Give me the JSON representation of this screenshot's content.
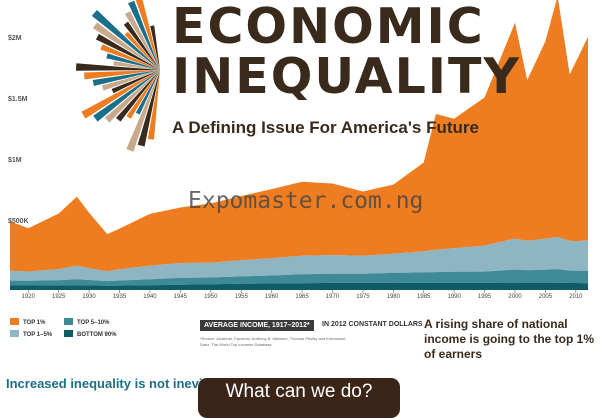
{
  "title_line1": "ECONOMIC",
  "title_line2": "INEQUALITY",
  "subtitle": "A Defining Issue For America's Future",
  "watermark": "Expomaster.com.ng",
  "y_tick_labels": [
    "$2M",
    "$1.5M",
    "$1M",
    "$500K"
  ],
  "x_tick_labels": [
    "1920",
    "1925",
    "1930",
    "1935",
    "1940",
    "1945",
    "1950",
    "1955",
    "1960",
    "1965",
    "1970",
    "1975",
    "1980",
    "1985",
    "1990",
    "1995",
    "2000",
    "2005",
    "2010"
  ],
  "legend": {
    "top1": "TOP 1%",
    "top1_5": "TOP 1–5%",
    "top5_10": "TOP 5–10%",
    "bottom90": "BOTTOM 90%"
  },
  "avg_income_label": "AVERAGE INCOME, 1917–2012*",
  "avg_income_units": "IN 2012 CONSTANT DOLLARS",
  "source_note": "*Source: Alvaredo, Facundo, Anthony B. Atkinson, Thomas Piketty and Emmanuel Saez, The World Top Incomes Database",
  "rising_text": "A rising share of national income is going to the top 1% of earners",
  "increased_text": "Increased inequality is not inevitable",
  "what_can_we_do": "What can we do?",
  "colors": {
    "top1": "#ee7d22",
    "top1_5": "#8fb4c2",
    "top5_10": "#3e8a96",
    "bottom90": "#0f5c66",
    "title": "#3a2a1c"
  },
  "chart_data": {
    "type": "area",
    "stacked": true,
    "x": [
      1917,
      1920,
      1925,
      1928,
      1930,
      1933,
      1935,
      1940,
      1945,
      1950,
      1955,
      1960,
      1965,
      1970,
      1975,
      1980,
      1985,
      1987,
      1990,
      1995,
      2000,
      2002,
      2005,
      2007,
      2009,
      2010,
      2012
    ],
    "series": [
      {
        "name": "BOTTOM 90%",
        "values": [
          12000,
          12000,
          13000,
          14000,
          13000,
          10000,
          11000,
          14000,
          19000,
          22000,
          26000,
          28000,
          31000,
          33000,
          33000,
          34000,
          33000,
          33000,
          33000,
          33000,
          36000,
          35000,
          35000,
          35000,
          33000,
          32000,
          31000
        ]
      },
      {
        "name": "TOP 5–10%",
        "values": [
          40000,
          38000,
          42000,
          48000,
          44000,
          38000,
          42000,
          48000,
          55000,
          55000,
          60000,
          65000,
          72000,
          75000,
          75000,
          80000,
          85000,
          88000,
          90000,
          92000,
          105000,
          100000,
          105000,
          110000,
          100000,
          100000,
          100000
        ]
      },
      {
        "name": "TOP 1–5%",
        "values": [
          80000,
          75000,
          90000,
          110000,
          95000,
          80000,
          90000,
          110000,
          120000,
          120000,
          130000,
          140000,
          150000,
          150000,
          145000,
          155000,
          170000,
          180000,
          190000,
          210000,
          250000,
          240000,
          250000,
          260000,
          240000,
          240000,
          245000
        ]
      },
      {
        "name": "TOP 1%",
        "values": [
          400000,
          350000,
          450000,
          560000,
          450000,
          300000,
          330000,
          420000,
          450000,
          480000,
          520000,
          560000,
          600000,
          580000,
          520000,
          560000,
          720000,
          1100000,
          1050000,
          1200000,
          1750000,
          1300000,
          1600000,
          1950000,
          1350000,
          1450000,
          1650000
        ]
      }
    ],
    "ylim": [
      0,
      2000000
    ],
    "yticks": [
      "$2M",
      "$1.5M",
      "$1M",
      "$500K"
    ],
    "grid": false,
    "legend_position": "bottom-left"
  }
}
